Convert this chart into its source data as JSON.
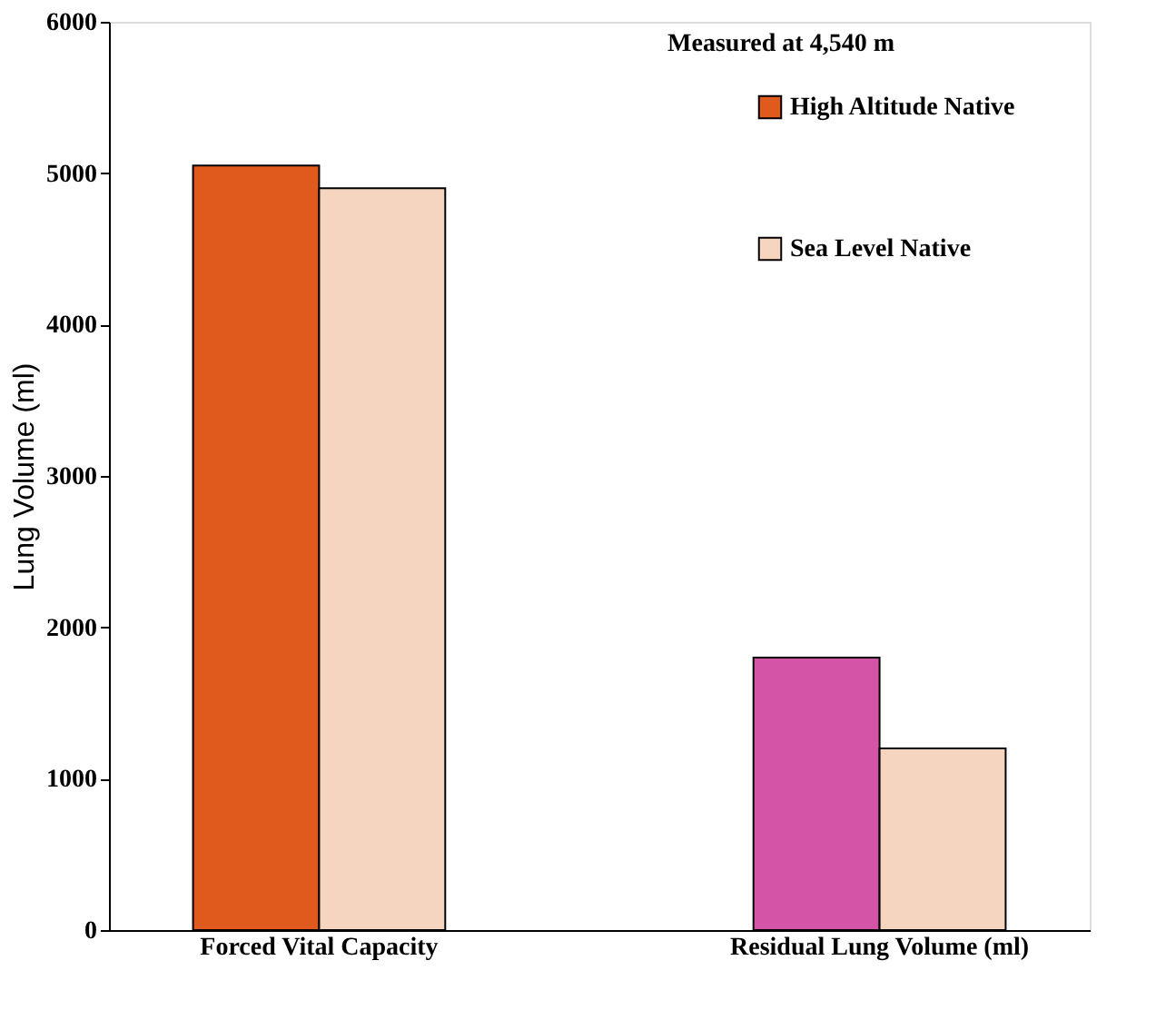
{
  "chart_data": {
    "type": "bar",
    "categories": [
      "Forced Vital Capacity",
      "Residual Lung Volume (ml)"
    ],
    "ylabel": "Lung Volume  (ml)",
    "ylim": [
      0,
      6000
    ],
    "yticks": [
      0,
      1000,
      2000,
      3000,
      4000,
      5000,
      6000
    ],
    "grid": false,
    "legend": "top right",
    "annotations": [
      "Measured at 4,540 m"
    ],
    "series": [
      {
        "name": "High Altitude Native",
        "color": "#e05a1e",
        "colors": [
          "#e05a1e",
          "#d455a8"
        ],
        "values": [
          5050,
          1800
        ]
      },
      {
        "name": "Sea Level Native",
        "color": "#f5d5bf",
        "colors": [
          "#f5d5bf",
          "#f5d5bf"
        ],
        "values": [
          4900,
          1200
        ]
      }
    ]
  }
}
